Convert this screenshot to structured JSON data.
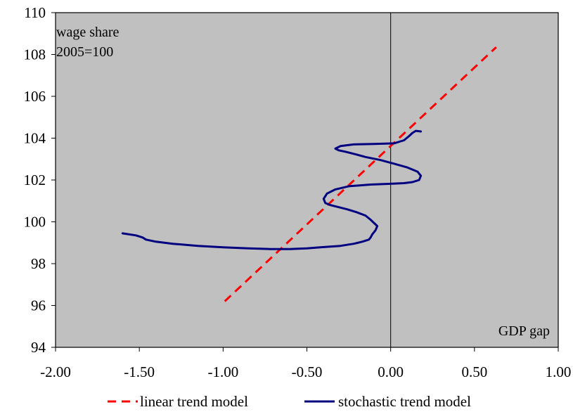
{
  "chart_data": {
    "type": "line",
    "xlim": [
      -2.0,
      1.0
    ],
    "ylim": [
      94,
      110
    ],
    "x_ticks": [
      -2.0,
      -1.5,
      -1.0,
      -0.5,
      0.0,
      0.5,
      1.0
    ],
    "x_tick_labels": [
      "-2.00",
      "-1.50",
      "-1.00",
      "-0.50",
      "0.00",
      "0.50",
      "1.00"
    ],
    "y_ticks": [
      94,
      96,
      98,
      100,
      102,
      104,
      106,
      108,
      110
    ],
    "y_tick_labels": [
      "94",
      "96",
      "98",
      "100",
      "102",
      "104",
      "106",
      "108",
      "110"
    ],
    "ylabel_lines": [
      "wage share",
      "2005=100"
    ],
    "xlabel": "GDP gap",
    "vertical_reference_x": 0.0,
    "plot_background": "#c0c0c0",
    "grid": false,
    "legend_position": "bottom",
    "series": [
      {
        "name": "linear trend model",
        "color": "#ff0000",
        "style": "dashed",
        "x": [
          -0.99,
          0.63
        ],
        "y": [
          96.2,
          108.35
        ]
      },
      {
        "name": "stochastic trend model",
        "color": "#000080",
        "style": "solid",
        "x": [
          -1.6,
          -1.52,
          -1.48,
          -1.46,
          -1.4,
          -1.3,
          -1.15,
          -1.0,
          -0.85,
          -0.72,
          -0.6,
          -0.5,
          -0.42,
          -0.3,
          -0.22,
          -0.17,
          -0.15,
          -0.13,
          -0.12,
          -0.11,
          -0.09,
          -0.08,
          -0.1,
          -0.12,
          -0.15,
          -0.2,
          -0.26,
          -0.32,
          -0.36,
          -0.39,
          -0.4,
          -0.38,
          -0.33,
          -0.25,
          -0.12,
          0.0,
          0.08,
          0.13,
          0.17,
          0.18,
          0.16,
          0.1,
          0.02,
          -0.06,
          -0.15,
          -0.22,
          -0.27,
          -0.31,
          -0.33,
          -0.3,
          -0.22,
          -0.1,
          0.02,
          0.08,
          0.11,
          0.13,
          0.15,
          0.18
        ],
        "y": [
          99.45,
          99.35,
          99.25,
          99.15,
          99.05,
          98.95,
          98.85,
          98.78,
          98.73,
          98.7,
          98.7,
          98.73,
          98.78,
          98.85,
          98.95,
          99.05,
          99.1,
          99.15,
          99.25,
          99.4,
          99.6,
          99.8,
          99.95,
          100.1,
          100.3,
          100.45,
          100.6,
          100.72,
          100.8,
          100.9,
          101.1,
          101.35,
          101.55,
          101.7,
          101.78,
          101.82,
          101.85,
          101.9,
          102.0,
          102.2,
          102.4,
          102.6,
          102.78,
          102.95,
          103.1,
          103.25,
          103.35,
          103.42,
          103.5,
          103.62,
          103.7,
          103.72,
          103.75,
          103.9,
          104.1,
          104.25,
          104.35,
          104.32
        ]
      }
    ]
  }
}
